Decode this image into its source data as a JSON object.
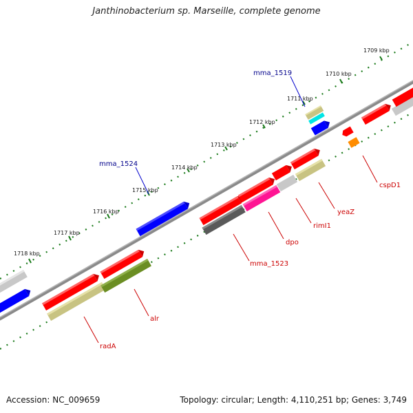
{
  "title": "Janthinobacterium sp. Marseille, complete genome",
  "footer": {
    "accession": "Accession: NC_009659",
    "summary": "Topology: circular; Length: 4,110,251 bp; Genes: 3,749"
  },
  "colors": {
    "backbone": "#7f7f7f",
    "tick_green": "#1a7a1a",
    "label_red": "#cc0000",
    "label_blue": "#00008b",
    "gene_red": "#ff0000",
    "gene_blue": "#0000ff",
    "gene_gray": "#c8c8c8",
    "gene_dark": "#5a5a5a",
    "gene_tan": "#c8c382",
    "gene_olive": "#6b8e23",
    "gene_pink": "#ff1493",
    "gene_cyan": "#00e5e5",
    "gene_orange": "#ff8c00"
  },
  "ruler": {
    "ticks": [
      {
        "label": "1709 kbp"
      },
      {
        "label": "1710 kbp"
      },
      {
        "label": "1711 kbp"
      },
      {
        "label": "1712 kbp"
      },
      {
        "label": "1713 kbp"
      },
      {
        "label": "1714 kbp"
      },
      {
        "label": "1715 kbp"
      },
      {
        "label": "1716 kbp"
      },
      {
        "label": "1717 kbp"
      },
      {
        "label": "1718 kbp"
      }
    ]
  },
  "gene_labels": {
    "mma_1519": "mma_1519",
    "mma_1524": "mma_1524",
    "cspD1": "cspD1",
    "yeaZ": "yeaZ",
    "rimI1": "rimI1",
    "dpo": "dpo",
    "mma_1523": "mma_1523",
    "alr": "alr",
    "radA": "radA"
  }
}
